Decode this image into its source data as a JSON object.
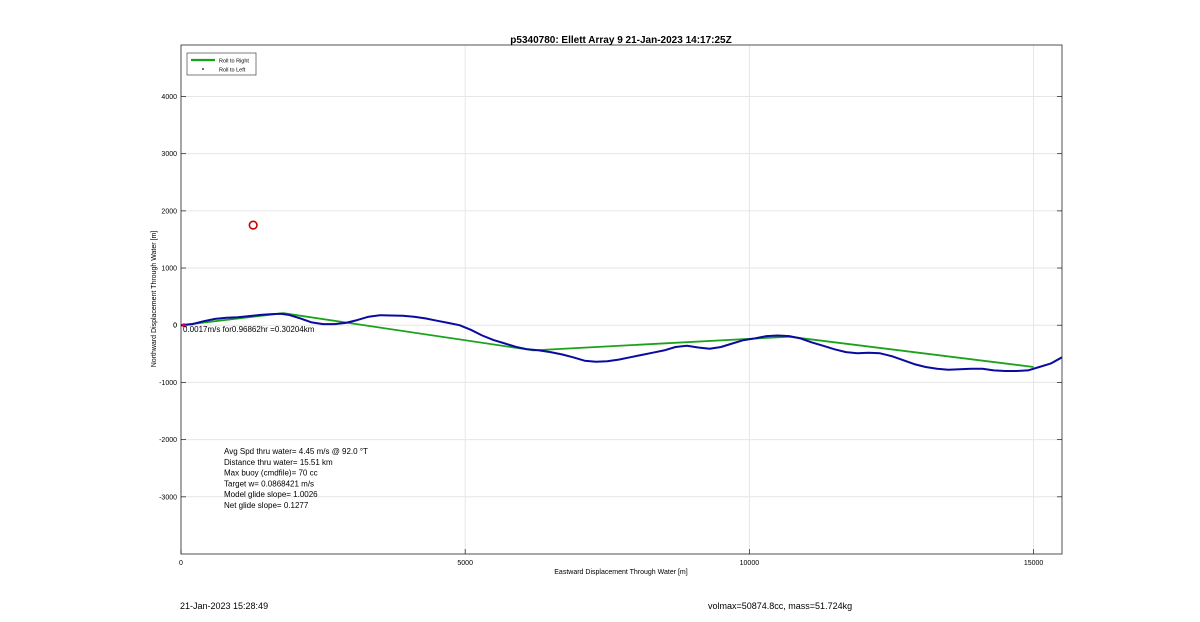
{
  "chart_data": {
    "type": "line",
    "title": "p5340780: Ellett Array 9 21-Jan-2023 14:17:25Z",
    "xlabel": "Eastward Displacement Through Water [m]",
    "ylabel": "Northward Displacement Through Water [m]",
    "xlim": [
      0,
      15500
    ],
    "ylim": [
      -4000,
      4900
    ],
    "xticks": [
      0,
      5000,
      10000,
      15000
    ],
    "yticks": [
      -3000,
      -2000,
      -1000,
      0,
      1000,
      2000,
      3000,
      4000
    ],
    "grid": true,
    "legend_position": "top-left",
    "legend": [
      "Roll to Right",
      "Roll to Left"
    ],
    "series": [
      {
        "name": "Roll to Right",
        "color": "#1aa31a",
        "x": [
          0,
          1800,
          6200,
          10700,
          15000
        ],
        "y": [
          0,
          210,
          -440,
          -200,
          -730
        ]
      },
      {
        "name": "Roll to Left",
        "color": "#000000",
        "x": [
          0,
          100
        ],
        "y": [
          0,
          -30
        ]
      },
      {
        "name": "",
        "color": "#0a0aa0",
        "x": [
          0,
          200,
          400,
          600,
          800,
          1000,
          1200,
          1400,
          1600,
          1750,
          1900,
          2100,
          2300,
          2500,
          2700,
          2900,
          3100,
          3300,
          3500,
          3700,
          3900,
          4100,
          4300,
          4500,
          4700,
          4900,
          5100,
          5300,
          5500,
          5700,
          5900,
          6100,
          6300,
          6500,
          6700,
          6900,
          7100,
          7300,
          7500,
          7700,
          7900,
          8100,
          8300,
          8500,
          8700,
          8900,
          9100,
          9300,
          9500,
          9700,
          9900,
          10100,
          10300,
          10500,
          10700,
          10900,
          11100,
          11300,
          11500,
          11700,
          11900,
          12100,
          12300,
          12500,
          12700,
          12900,
          13100,
          13300,
          13500,
          13700,
          13900,
          14100,
          14300,
          14500,
          14700,
          14900,
          15100,
          15300,
          15500
        ],
        "y": [
          0,
          20,
          70,
          110,
          130,
          140,
          160,
          180,
          195,
          200,
          180,
          120,
          50,
          20,
          20,
          40,
          90,
          150,
          175,
          170,
          165,
          150,
          120,
          80,
          40,
          0,
          -80,
          -180,
          -260,
          -320,
          -380,
          -420,
          -440,
          -470,
          -510,
          -560,
          -620,
          -640,
          -630,
          -600,
          -560,
          -520,
          -480,
          -440,
          -380,
          -360,
          -390,
          -410,
          -380,
          -320,
          -260,
          -230,
          -190,
          -180,
          -190,
          -230,
          -300,
          -360,
          -420,
          -470,
          -490,
          -480,
          -490,
          -540,
          -610,
          -680,
          -730,
          -760,
          -780,
          -770,
          -760,
          -760,
          -790,
          -800,
          -800,
          -790,
          -730,
          -670,
          -560
        ]
      }
    ],
    "markers": [
      {
        "label": "target circle",
        "x": 1270,
        "y": 1750,
        "color": "#cc0000"
      }
    ],
    "annotations": {
      "current_label": "0.0017m/s for0.96862hr =0.30204km",
      "stats": [
        "Avg Spd thru water=  4.45 m/s @  92.0 °T",
        "Distance thru water= 15.51 km",
        "Max buoy (cmdfile)= 70 cc",
        "Target w= 0.0868421 m/s",
        "Model glide slope= 1.0026",
        "Net glide slope= 0.1277"
      ]
    }
  },
  "footer": {
    "left": "21-Jan-2023 15:28:49",
    "right": "volmax=50874.8cc, mass=51.724kg"
  }
}
